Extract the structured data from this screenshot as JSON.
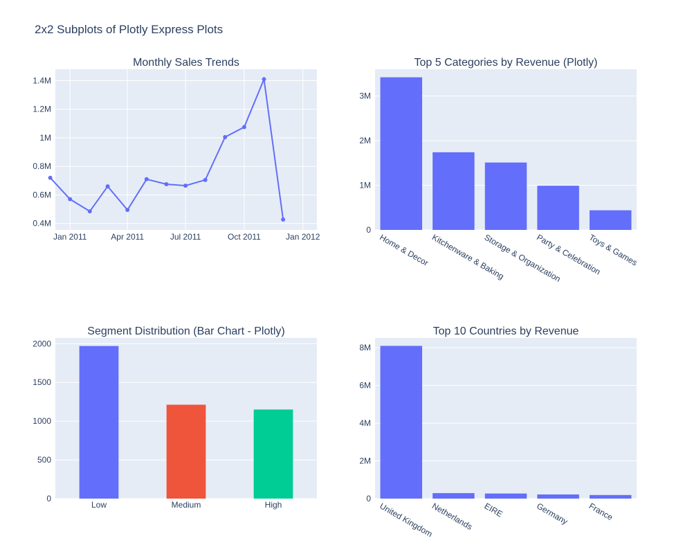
{
  "figure": {
    "title": "2x2 Subplots of Plotly Express Plots"
  },
  "colors": {
    "plot_bg": "#e5ecf6",
    "primary": "#636efa",
    "red": "#EF553B",
    "green": "#00cc96",
    "text": "#2a3f5f"
  },
  "chart_data": [
    {
      "type": "line",
      "title": "Monthly Sales Trends",
      "x": [
        "2010-12",
        "2011-01",
        "2011-02",
        "2011-03",
        "2011-04",
        "2011-05",
        "2011-06",
        "2011-07",
        "2011-08",
        "2011-09",
        "2011-10",
        "2011-11",
        "2011-12"
      ],
      "y": [
        720000,
        570000,
        485000,
        660000,
        495000,
        710000,
        675000,
        665000,
        705000,
        1005000,
        1075000,
        1410000,
        428000
      ],
      "x_tick_labels": [
        "Jan 2011",
        "Apr 2011",
        "Jul 2011",
        "Oct 2011",
        "Jan 2012"
      ],
      "x_tick_values": [
        "2011-01-01",
        "2011-04-01",
        "2011-07-01",
        "2011-10-01",
        "2012-01-01"
      ],
      "y_tick_labels": [
        "0.4M",
        "0.6M",
        "0.8M",
        "1M",
        "1.2M",
        "1.4M"
      ],
      "y_tick_values": [
        400000,
        600000,
        800000,
        1000000,
        1200000,
        1400000
      ],
      "ylim": [
        355000,
        1480000
      ],
      "grid": true
    },
    {
      "type": "bar",
      "title": "Top 5 Categories by Revenue (Plotly)",
      "categories": [
        "Home & Decor",
        "Kitchenware & Baking",
        "Storage & Organization",
        "Party & Celebration",
        "Toys & Games"
      ],
      "values": [
        3420000,
        1740000,
        1510000,
        990000,
        440000
      ],
      "y_tick_labels": [
        "0",
        "1M",
        "2M",
        "3M"
      ],
      "y_tick_values": [
        0,
        1000000,
        2000000,
        3000000
      ],
      "ylim": [
        0,
        3600000
      ],
      "grid": true
    },
    {
      "type": "bar",
      "title": "Segment Distribution (Bar Chart - Plotly)",
      "categories": [
        "Low",
        "Medium",
        "High"
      ],
      "values": [
        1970,
        1212,
        1150
      ],
      "bar_colors": [
        "#636efa",
        "#EF553B",
        "#00cc96"
      ],
      "y_tick_labels": [
        "0",
        "500",
        "1000",
        "1500",
        "2000"
      ],
      "y_tick_values": [
        0,
        500,
        1000,
        1500,
        2000
      ],
      "ylim": [
        0,
        2074
      ],
      "grid": true
    },
    {
      "type": "bar",
      "title": "Top 10 Countries by Revenue",
      "categories": [
        "United Kingdom",
        "Netherlands",
        "EIRE",
        "Germany",
        "France"
      ],
      "values": [
        8100000,
        290000,
        270000,
        220000,
        190000
      ],
      "y_tick_labels": [
        "0",
        "2M",
        "4M",
        "6M",
        "8M"
      ],
      "y_tick_values": [
        0,
        2000000,
        4000000,
        6000000,
        8000000
      ],
      "ylim": [
        0,
        8520000
      ],
      "grid": true
    }
  ]
}
